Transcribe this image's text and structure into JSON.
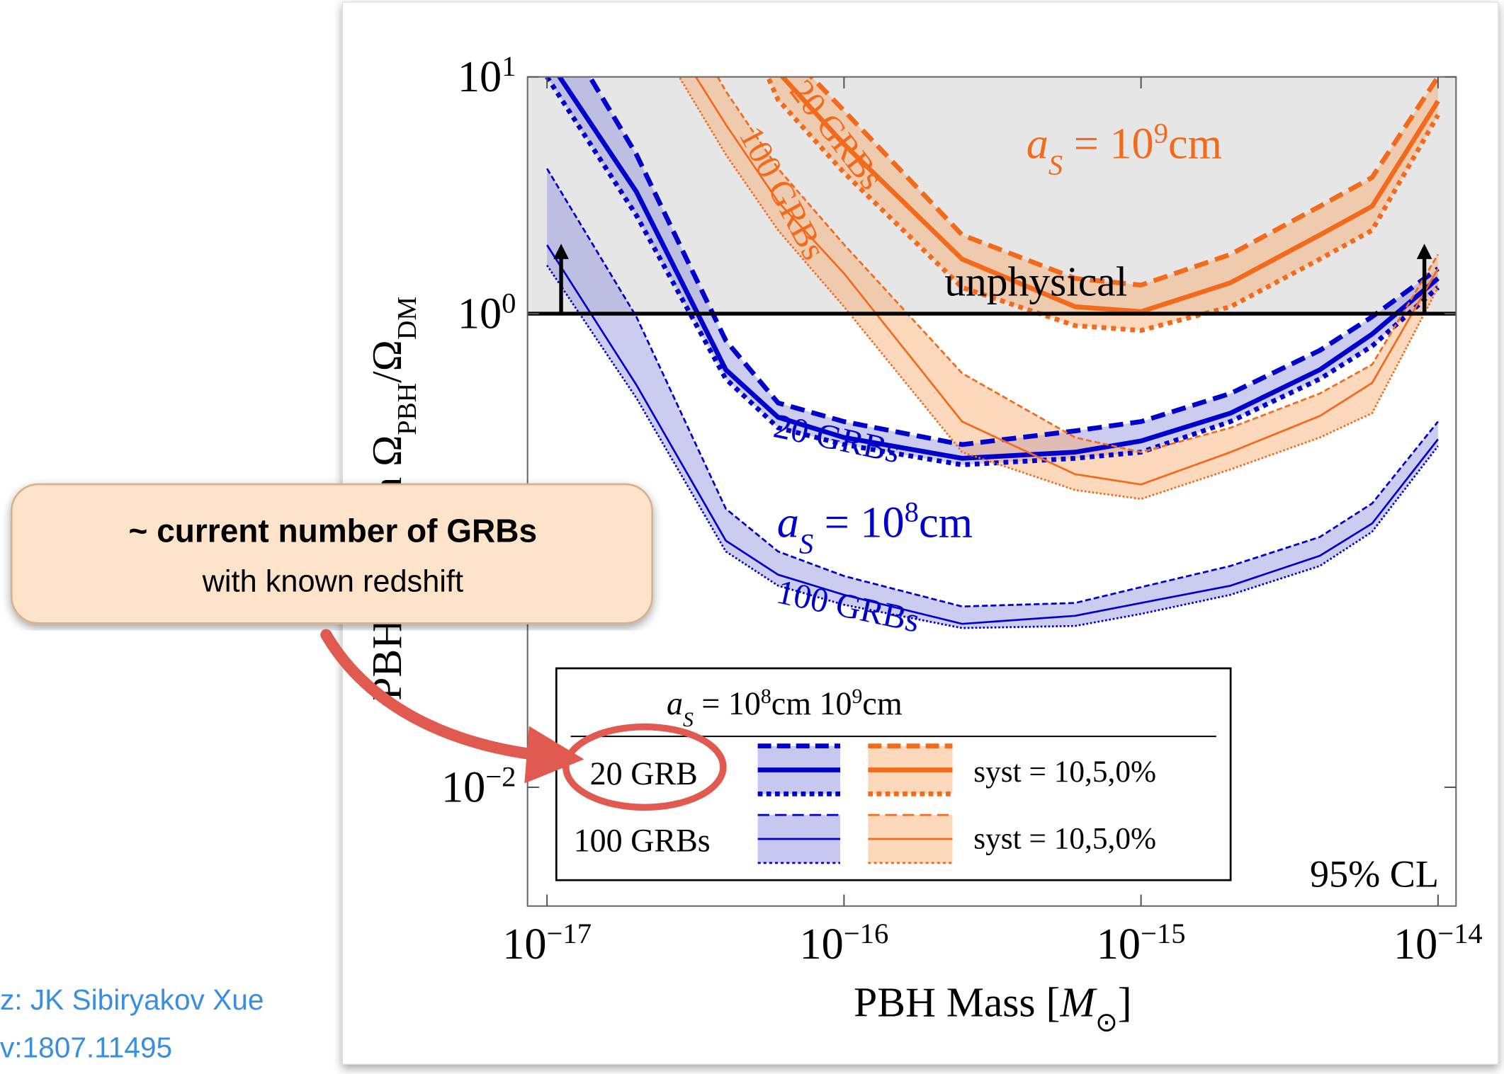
{
  "chart_data": {
    "type": "band-line",
    "x": [
      1e-17,
      2e-17,
      4e-17,
      6e-17,
      1e-16,
      2.5e-16,
      6e-16,
      1e-15,
      2e-15,
      4e-15,
      6e-15,
      1e-14
    ],
    "series": [
      {
        "color": "#0000cc",
        "band_color": "#8f8fe0",
        "line_width": 2,
        "upper": [
          4.1,
          0.97,
          0.15,
          0.099,
          0.078,
          0.058,
          0.06,
          0.07,
          0.086,
          0.114,
          0.158,
          0.35
        ],
        "values": [
          1.95,
          0.5,
          0.11,
          0.079,
          0.065,
          0.049,
          0.053,
          0.06,
          0.071,
          0.095,
          0.13,
          0.295
        ],
        "lower": [
          1.6,
          0.44,
          0.099,
          0.071,
          0.059,
          0.047,
          0.048,
          0.054,
          0.065,
          0.086,
          0.12,
          0.276
        ]
      },
      {
        "color": "#0000cc",
        "band_color": "#8f8fe0",
        "line_width": 5,
        "upper": [
          20,
          4.7,
          0.77,
          0.42,
          0.35,
          0.28,
          0.32,
          0.35,
          0.46,
          0.7,
          0.97,
          1.55
        ],
        "values": [
          12,
          3.27,
          0.58,
          0.365,
          0.3,
          0.245,
          0.26,
          0.29,
          0.38,
          0.58,
          0.82,
          1.41
        ],
        "lower": [
          10,
          2.6,
          0.53,
          0.33,
          0.28,
          0.23,
          0.245,
          0.26,
          0.35,
          0.53,
          0.73,
          1.29
        ]
      },
      {
        "color": "#f26b1d",
        "band_color": "#f9a86a",
        "line_width": 2,
        "upper": [
          null,
          40,
          8.7,
          4.1,
          1.96,
          0.56,
          0.3,
          0.26,
          0.33,
          0.46,
          0.61,
          1.78
        ],
        "values": [
          null,
          25,
          6.3,
          2.97,
          1.48,
          0.35,
          0.21,
          0.19,
          0.26,
          0.37,
          0.51,
          1.55
        ],
        "lower": [
          null,
          20,
          4.7,
          2.25,
          1.07,
          0.26,
          0.18,
          0.165,
          0.22,
          0.3,
          0.38,
          1.29
        ]
      },
      {
        "color": "#f26b1d",
        "band_color": "#f9a86a",
        "line_width": 5,
        "upper": [
          null,
          null,
          60,
          14,
          7.2,
          2.15,
          1.41,
          1.32,
          1.78,
          2.84,
          3.76,
          10
        ],
        "values": [
          null,
          null,
          40,
          10.5,
          5.2,
          1.7,
          1.07,
          1.02,
          1.35,
          2.15,
          2.84,
          7.9
        ],
        "lower": [
          null,
          null,
          25,
          8,
          3.94,
          1.29,
          0.89,
          0.85,
          1.07,
          1.7,
          2.25,
          6.9
        ]
      }
    ],
    "log_x": true,
    "log_y": true,
    "xlim": [
      8.6e-18,
      1.15e-14
    ],
    "ylim": [
      0.00315,
      10
    ],
    "xticks": [
      {
        "value": 1e-17,
        "label": "10",
        "exponent": "−17"
      },
      {
        "value": 1e-16,
        "label": "10",
        "exponent": "−16"
      },
      {
        "value": 1e-15,
        "label": "10",
        "exponent": "−15"
      },
      {
        "value": 1e-14,
        "label": "10",
        "exponent": "−14"
      }
    ],
    "yticks": [
      {
        "value": 10,
        "label": "10",
        "exponent": "1"
      },
      {
        "value": 1,
        "label": "10",
        "exponent": "0"
      },
      {
        "value": 0.01,
        "label": "10",
        "exponent": "−2"
      }
    ],
    "unphysical_level": 1,
    "xlabel": [
      "PBH Mass [",
      "M",
      "⊙",
      "]"
    ],
    "ylabel": [
      "PBH fraction Ω",
      "PBH",
      "/Ω",
      "DM"
    ],
    "annotations": {
      "unphysical": "unphysical",
      "a_s_9": [
        "a",
        "S",
        " = 10",
        "9",
        "cm"
      ],
      "a_s_8": [
        "a",
        "S",
        " = 10",
        "8",
        "cm"
      ],
      "label_20_orange": "20 GRBs",
      "label_100_orange": "100 GRBs",
      "label_20_blue": "20 GRBs",
      "label_100_blue": "100 GRBs",
      "cl": "95% CL"
    },
    "legend": {
      "header": [
        "a",
        "S",
        " = 10",
        "8",
        "cm 10",
        "9",
        "cm"
      ],
      "rows": [
        "20 GRB",
        "100 GRBs"
      ],
      "syst": [
        "syst = 10,5,0%",
        "syst = 10,5,0%"
      ]
    }
  },
  "callout": {
    "title": "~ current number of GRBs",
    "subtitle": "with known redshift"
  },
  "credit": [
    "z: JK Sibiryakov Xue",
    "v:1807.11495"
  ]
}
